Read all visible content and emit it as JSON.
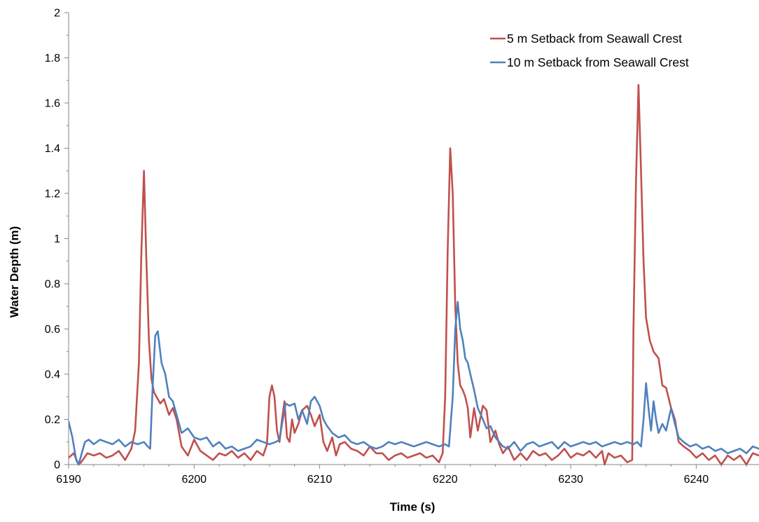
{
  "chart_data": {
    "type": "line",
    "title": "",
    "xlabel": "Time (s)",
    "ylabel": "Water Depth (m)",
    "xlim": [
      6190,
      6245
    ],
    "ylim": [
      0,
      2
    ],
    "xticks": [
      6190,
      6200,
      6210,
      6220,
      6230,
      6240
    ],
    "xtick_labels": [
      "6190",
      "6200",
      "6210",
      "6220",
      "6230",
      "6240"
    ],
    "yticks": [
      0,
      0.2,
      0.4,
      0.6,
      0.8,
      1,
      1.2,
      1.4,
      1.6,
      1.8,
      2
    ],
    "ytick_labels": [
      "0",
      "0.2",
      "0.4",
      "0.6",
      "0.8",
      "1",
      "1.2",
      "1.4",
      "1.6",
      "1.8",
      "2"
    ],
    "grid": false,
    "legend_position": "top-right",
    "series": [
      {
        "name": "5 m Setback from Seawall Crest",
        "color": "#c0504d",
        "x": [
          6190.0,
          6190.4,
          6190.8,
          6191.0,
          6191.5,
          6192.0,
          6192.5,
          6193.0,
          6193.5,
          6194.0,
          6194.5,
          6195.0,
          6195.3,
          6195.6,
          6195.8,
          6196.0,
          6196.2,
          6196.4,
          6196.6,
          6196.8,
          6197.0,
          6197.3,
          6197.6,
          6198.0,
          6198.3,
          6198.6,
          6199.0,
          6199.5,
          6200.0,
          6200.5,
          6201.0,
          6201.5,
          6202.0,
          6202.5,
          6203.0,
          6203.5,
          6204.0,
          6204.5,
          6205.0,
          6205.5,
          6205.8,
          6206.0,
          6206.2,
          6206.4,
          6206.6,
          6206.8,
          6207.0,
          6207.2,
          6207.4,
          6207.6,
          6207.8,
          6208.0,
          6208.3,
          6208.6,
          6209.0,
          6209.3,
          6209.6,
          6210.0,
          6210.3,
          6210.6,
          6211.0,
          6211.3,
          6211.6,
          6212.0,
          6212.5,
          6213.0,
          6213.5,
          6214.0,
          6214.5,
          6215.0,
          6215.5,
          6216.0,
          6216.5,
          6217.0,
          6217.5,
          6218.0,
          6218.5,
          6219.0,
          6219.5,
          6219.8,
          6220.0,
          6220.2,
          6220.4,
          6220.6,
          6220.8,
          6221.0,
          6221.2,
          6221.4,
          6221.6,
          6221.8,
          6222.0,
          6222.3,
          6222.6,
          6223.0,
          6223.3,
          6223.6,
          6224.0,
          6224.3,
          6224.6,
          6225.0,
          6225.5,
          6226.0,
          6226.5,
          6227.0,
          6227.5,
          6228.0,
          6228.5,
          6229.0,
          6229.5,
          6230.0,
          6230.5,
          6231.0,
          6231.5,
          6232.0,
          6232.5,
          6232.7,
          6233.0,
          6233.5,
          6234.0,
          6234.5,
          6234.9,
          6235.0,
          6235.2,
          6235.4,
          6235.6,
          6235.8,
          6236.0,
          6236.3,
          6236.6,
          6237.0,
          6237.3,
          6237.6,
          6238.0,
          6238.3,
          6238.6,
          6239.0,
          6239.5,
          6240.0,
          6240.5,
          6241.0,
          6241.5,
          6242.0,
          6242.5,
          6243.0,
          6243.5,
          6244.0,
          6244.5,
          6245.0
        ],
        "y": [
          0.03,
          0.05,
          0.0,
          0.01,
          0.05,
          0.04,
          0.05,
          0.03,
          0.04,
          0.06,
          0.02,
          0.07,
          0.15,
          0.45,
          0.95,
          1.3,
          0.9,
          0.55,
          0.38,
          0.32,
          0.3,
          0.27,
          0.29,
          0.22,
          0.25,
          0.2,
          0.08,
          0.04,
          0.11,
          0.06,
          0.04,
          0.02,
          0.05,
          0.04,
          0.06,
          0.03,
          0.05,
          0.02,
          0.06,
          0.04,
          0.09,
          0.3,
          0.35,
          0.3,
          0.15,
          0.1,
          0.2,
          0.28,
          0.12,
          0.1,
          0.2,
          0.14,
          0.18,
          0.24,
          0.26,
          0.22,
          0.17,
          0.22,
          0.1,
          0.06,
          0.12,
          0.04,
          0.09,
          0.1,
          0.07,
          0.06,
          0.04,
          0.08,
          0.05,
          0.05,
          0.02,
          0.04,
          0.05,
          0.03,
          0.04,
          0.05,
          0.03,
          0.04,
          0.01,
          0.05,
          0.3,
          0.95,
          1.4,
          1.2,
          0.7,
          0.45,
          0.35,
          0.33,
          0.3,
          0.25,
          0.12,
          0.25,
          0.15,
          0.26,
          0.24,
          0.1,
          0.15,
          0.09,
          0.05,
          0.08,
          0.02,
          0.05,
          0.02,
          0.06,
          0.04,
          0.05,
          0.02,
          0.04,
          0.07,
          0.03,
          0.05,
          0.04,
          0.06,
          0.03,
          0.06,
          0.0,
          0.05,
          0.03,
          0.04,
          0.01,
          0.02,
          0.6,
          1.25,
          1.68,
          1.3,
          0.9,
          0.65,
          0.55,
          0.5,
          0.47,
          0.35,
          0.34,
          0.25,
          0.2,
          0.1,
          0.08,
          0.06,
          0.03,
          0.05,
          0.02,
          0.04,
          0.0,
          0.04,
          0.02,
          0.04,
          0.0,
          0.05,
          0.04
        ]
      },
      {
        "name": "10 m Setback from Seawall Crest",
        "color": "#4f81bd",
        "x": [
          6190.0,
          6190.3,
          6190.6,
          6190.8,
          6191.0,
          6191.3,
          6191.6,
          6192.0,
          6192.5,
          6193.0,
          6193.5,
          6194.0,
          6194.5,
          6195.0,
          6195.5,
          6196.0,
          6196.3,
          6196.5,
          6196.7,
          6196.9,
          6197.1,
          6197.4,
          6197.7,
          6198.0,
          6198.3,
          6198.6,
          6199.0,
          6199.5,
          6200.0,
          6200.5,
          6201.0,
          6201.5,
          6202.0,
          6202.5,
          6203.0,
          6203.5,
          6204.0,
          6204.5,
          6205.0,
          6205.5,
          6206.0,
          6206.5,
          6206.8,
          6207.0,
          6207.3,
          6207.6,
          6208.0,
          6208.3,
          6208.6,
          6209.0,
          6209.3,
          6209.6,
          6210.0,
          6210.3,
          6210.6,
          6211.0,
          6211.5,
          6212.0,
          6212.5,
          6213.0,
          6213.5,
          6214.0,
          6214.5,
          6215.0,
          6215.5,
          6216.0,
          6216.5,
          6217.0,
          6217.5,
          6218.0,
          6218.5,
          6219.0,
          6219.5,
          6220.0,
          6220.3,
          6220.6,
          6220.8,
          6221.0,
          6221.2,
          6221.4,
          6221.6,
          6221.8,
          6222.0,
          6222.3,
          6222.6,
          6223.0,
          6223.3,
          6223.6,
          6224.0,
          6224.3,
          6224.6,
          6225.0,
          6225.5,
          6226.0,
          6226.5,
          6227.0,
          6227.5,
          6228.0,
          6228.5,
          6229.0,
          6229.5,
          6230.0,
          6230.5,
          6231.0,
          6231.5,
          6232.0,
          6232.5,
          6233.0,
          6233.5,
          6234.0,
          6234.5,
          6235.0,
          6235.3,
          6235.6,
          6235.8,
          6236.0,
          6236.2,
          6236.4,
          6236.6,
          6236.8,
          6237.0,
          6237.3,
          6237.6,
          6238.0,
          6238.3,
          6238.6,
          6239.0,
          6239.5,
          6240.0,
          6240.5,
          6241.0,
          6241.5,
          6242.0,
          6242.5,
          6243.0,
          6243.5,
          6244.0,
          6244.5,
          6245.0
        ],
        "y": [
          0.19,
          0.12,
          0.02,
          0.0,
          0.04,
          0.1,
          0.11,
          0.09,
          0.11,
          0.1,
          0.09,
          0.11,
          0.08,
          0.1,
          0.09,
          0.1,
          0.08,
          0.07,
          0.35,
          0.57,
          0.59,
          0.45,
          0.4,
          0.3,
          0.28,
          0.22,
          0.14,
          0.16,
          0.12,
          0.11,
          0.12,
          0.08,
          0.1,
          0.07,
          0.08,
          0.06,
          0.07,
          0.08,
          0.11,
          0.1,
          0.09,
          0.1,
          0.11,
          0.18,
          0.27,
          0.26,
          0.27,
          0.2,
          0.24,
          0.18,
          0.28,
          0.3,
          0.26,
          0.2,
          0.17,
          0.14,
          0.12,
          0.13,
          0.1,
          0.09,
          0.1,
          0.08,
          0.07,
          0.08,
          0.1,
          0.09,
          0.1,
          0.09,
          0.08,
          0.09,
          0.1,
          0.09,
          0.08,
          0.09,
          0.08,
          0.3,
          0.6,
          0.72,
          0.6,
          0.55,
          0.47,
          0.45,
          0.4,
          0.33,
          0.25,
          0.2,
          0.16,
          0.17,
          0.12,
          0.1,
          0.08,
          0.07,
          0.1,
          0.06,
          0.09,
          0.1,
          0.08,
          0.09,
          0.1,
          0.07,
          0.1,
          0.08,
          0.09,
          0.1,
          0.09,
          0.1,
          0.08,
          0.09,
          0.1,
          0.09,
          0.1,
          0.09,
          0.1,
          0.08,
          0.2,
          0.36,
          0.25,
          0.15,
          0.28,
          0.2,
          0.14,
          0.18,
          0.15,
          0.25,
          0.18,
          0.12,
          0.1,
          0.08,
          0.09,
          0.07,
          0.08,
          0.06,
          0.07,
          0.05,
          0.06,
          0.07,
          0.05,
          0.08,
          0.07
        ]
      }
    ]
  }
}
